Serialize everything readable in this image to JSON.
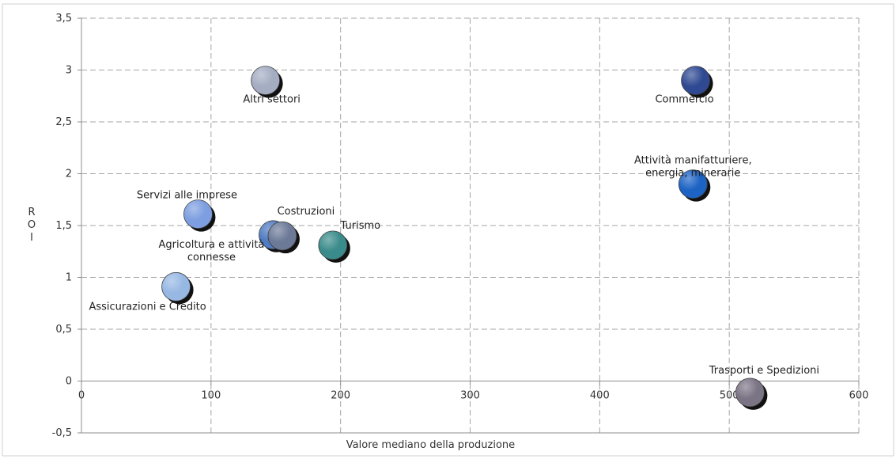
{
  "chart_data": {
    "type": "scatter",
    "xlabel": "Valore mediano della produzione",
    "ylabel": "R\nO\nI",
    "xlim": [
      0,
      600
    ],
    "ylim": [
      -0.5,
      3.5
    ],
    "x_ticks": [
      0,
      100,
      200,
      300,
      400,
      500,
      600
    ],
    "y_ticks": [
      -0.5,
      0,
      0.5,
      1,
      1.5,
      2,
      2.5,
      3,
      3.5
    ],
    "x_tick_labels": [
      "0",
      "100",
      "200",
      "300",
      "400",
      "500",
      "600"
    ],
    "y_tick_labels": [
      "-0,5",
      "0",
      "0,5",
      "1",
      "1,5",
      "2",
      "2,5",
      "3",
      "3,5"
    ],
    "grid": true,
    "points": [
      {
        "label": "Altri settori",
        "x": 142,
        "y": 2.9,
        "color": "#a4adc2"
      },
      {
        "label": "Commercio",
        "x": 474,
        "y": 2.9,
        "color": "#2f4a92"
      },
      {
        "label": "Attività manifatturiere, energia, minerarie",
        "x": 472,
        "y": 1.9,
        "color": "#1c63c4"
      },
      {
        "label": "Servizi alle imprese",
        "x": 90,
        "y": 1.61,
        "color": "#7d9ee0"
      },
      {
        "label": "Agricoltura e attività connesse",
        "x": 148,
        "y": 1.41,
        "color": "#4f7bc2"
      },
      {
        "label": "Costruzioni",
        "x": 155,
        "y": 1.4,
        "color": "#6c7a98"
      },
      {
        "label": "Turismo",
        "x": 194,
        "y": 1.31,
        "color": "#3a8b8b"
      },
      {
        "label": "Assicurazioni e Credito",
        "x": 73,
        "y": 0.91,
        "color": "#97b8e3"
      },
      {
        "label": "Trasporti e Spedizioni",
        "x": 516,
        "y": -0.11,
        "color": "#7b7485"
      }
    ]
  }
}
